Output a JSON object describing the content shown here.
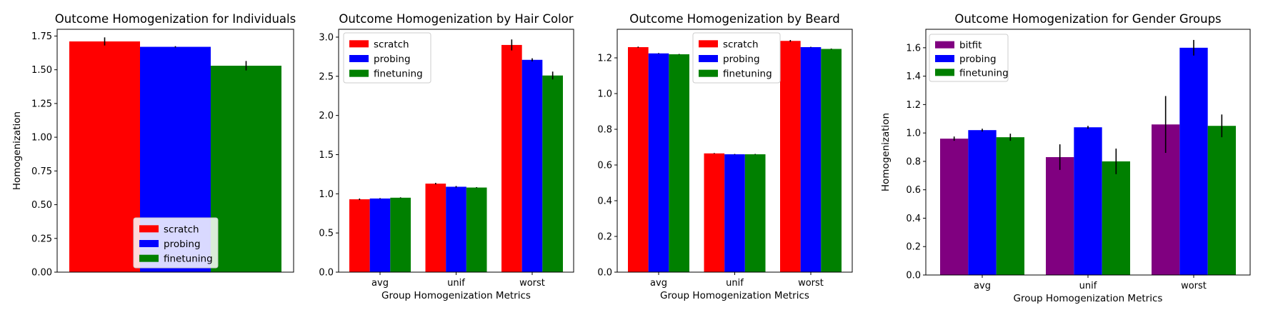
{
  "chart_data": [
    {
      "type": "bar",
      "title": "Outcome Homogenization for Individuals",
      "xlabel": "",
      "ylabel": "Homogenization",
      "categories": [
        ""
      ],
      "ylim": [
        0,
        1.8
      ],
      "yticks": [
        "0.00",
        "0.25",
        "0.50",
        "0.75",
        "1.00",
        "1.25",
        "1.50",
        "1.75"
      ],
      "legend_position": "lower center",
      "series": [
        {
          "name": "scratch",
          "color": "#ff0000",
          "values": [
            1.71
          ],
          "errors": [
            0.03
          ]
        },
        {
          "name": "probing",
          "color": "#0000ff",
          "values": [
            1.67
          ],
          "errors": [
            0.005
          ]
        },
        {
          "name": "finetuning",
          "color": "#008000",
          "values": [
            1.53
          ],
          "errors": [
            0.035
          ]
        }
      ]
    },
    {
      "type": "bar",
      "title": "Outcome Homogenization by Hair Color",
      "xlabel": "Group Homogenization Metrics",
      "ylabel": "",
      "categories": [
        "avg",
        "unif",
        "worst"
      ],
      "ylim": [
        0,
        3.1
      ],
      "yticks": [
        "0.0",
        "0.5",
        "1.0",
        "1.5",
        "2.0",
        "2.5",
        "3.0"
      ],
      "legend_position": "upper left",
      "series": [
        {
          "name": "scratch",
          "color": "#ff0000",
          "values": [
            0.93,
            1.13,
            2.9
          ],
          "errors": [
            0.01,
            0.01,
            0.07
          ]
        },
        {
          "name": "probing",
          "color": "#0000ff",
          "values": [
            0.94,
            1.09,
            2.71
          ],
          "errors": [
            0.005,
            0.01,
            0.02
          ]
        },
        {
          "name": "finetuning",
          "color": "#008000",
          "values": [
            0.95,
            1.08,
            2.51
          ],
          "errors": [
            0.005,
            0.005,
            0.05
          ]
        }
      ]
    },
    {
      "type": "bar",
      "title": "Outcome Homogenization by Beard",
      "xlabel": "Group Homogenization Metrics",
      "ylabel": "",
      "categories": [
        "avg",
        "unif",
        "worst"
      ],
      "ylim": [
        0,
        1.36
      ],
      "yticks": [
        "0.0",
        "0.2",
        "0.4",
        "0.6",
        "0.8",
        "1.0",
        "1.2"
      ],
      "legend_position": "upper center",
      "series": [
        {
          "name": "scratch",
          "color": "#ff0000",
          "values": [
            1.26,
            0.665,
            1.295
          ],
          "errors": [
            0.003,
            0.002,
            0.005
          ]
        },
        {
          "name": "probing",
          "color": "#0000ff",
          "values": [
            1.225,
            0.66,
            1.26
          ],
          "errors": [
            0.002,
            0.002,
            0.002
          ]
        },
        {
          "name": "finetuning",
          "color": "#008000",
          "values": [
            1.22,
            0.66,
            1.25
          ],
          "errors": [
            0.002,
            0.002,
            0.002
          ]
        }
      ]
    },
    {
      "type": "bar",
      "title": "Outcome Homogenization for Gender Groups",
      "xlabel": "Group Homogenization Metrics",
      "ylabel": "Homogenization",
      "categories": [
        "avg",
        "unif",
        "worst"
      ],
      "ylim": [
        0,
        1.73
      ],
      "yticks": [
        "0.0",
        "0.2",
        "0.4",
        "0.6",
        "0.8",
        "1.0",
        "1.2",
        "1.4",
        "1.6"
      ],
      "legend_position": "upper left",
      "series": [
        {
          "name": "bitfit",
          "color": "#800080",
          "values": [
            0.96,
            0.83,
            1.06
          ],
          "errors": [
            0.015,
            0.09,
            0.2
          ]
        },
        {
          "name": "probing",
          "color": "#0000ff",
          "values": [
            1.02,
            1.04,
            1.6
          ],
          "errors": [
            0.01,
            0.01,
            0.055
          ]
        },
        {
          "name": "finetuning",
          "color": "#008000",
          "values": [
            0.97,
            0.8,
            1.05
          ],
          "errors": [
            0.025,
            0.09,
            0.08
          ]
        }
      ]
    }
  ]
}
